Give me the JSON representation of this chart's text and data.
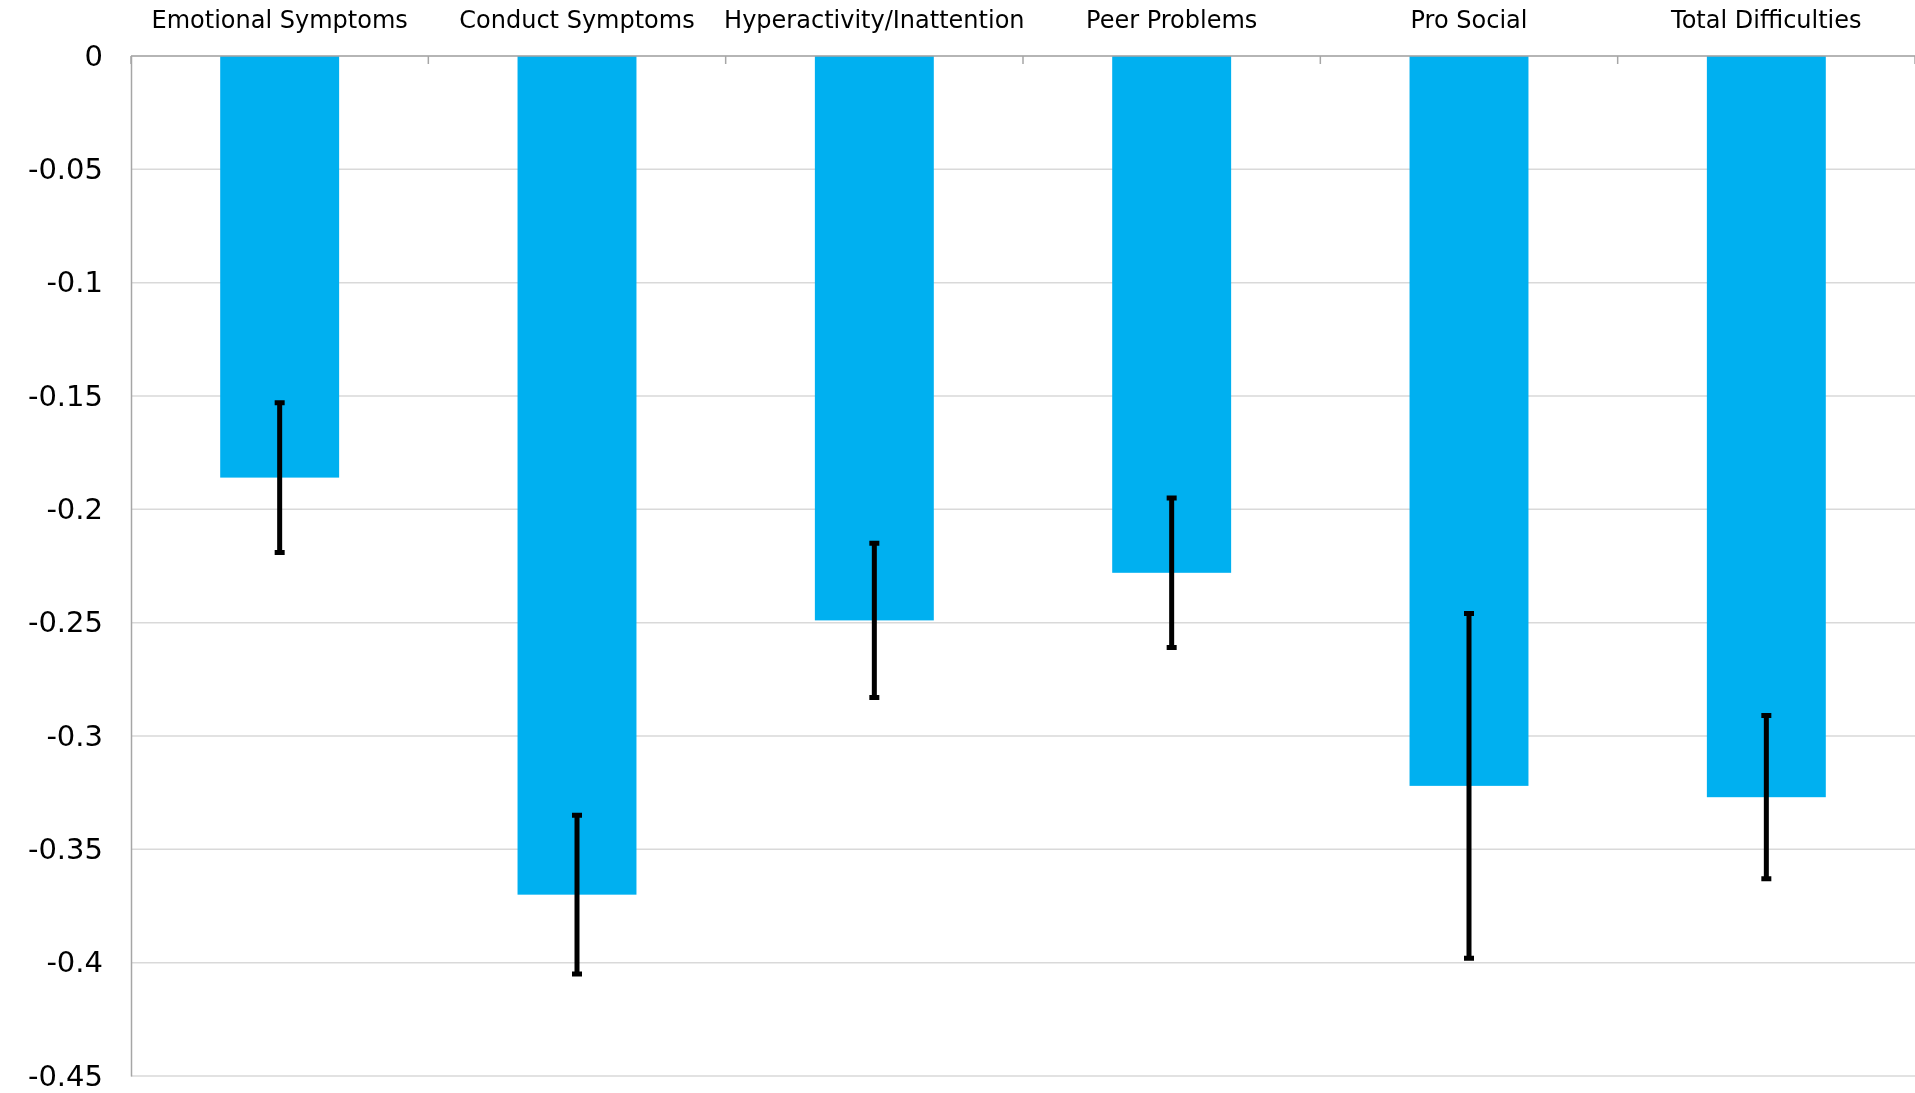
{
  "chart_data": {
    "type": "bar",
    "categories": [
      "Emotional Symptoms",
      "Conduct Symptoms",
      "Hyperactivity/Inattention",
      "Peer Problems",
      "Pro Social",
      "Total Difficulties"
    ],
    "values": [
      -0.186,
      -0.37,
      -0.249,
      -0.228,
      -0.322,
      -0.327
    ],
    "errors": [
      0.033,
      0.035,
      0.034,
      0.033,
      0.076,
      0.036
    ],
    "color": "#00b0f0",
    "ylim": [
      -0.45,
      0
    ],
    "yticks": [
      0,
      -0.05,
      -0.1,
      -0.15,
      -0.2,
      -0.25,
      -0.3,
      -0.35,
      -0.4,
      -0.45
    ],
    "grid": "y"
  }
}
